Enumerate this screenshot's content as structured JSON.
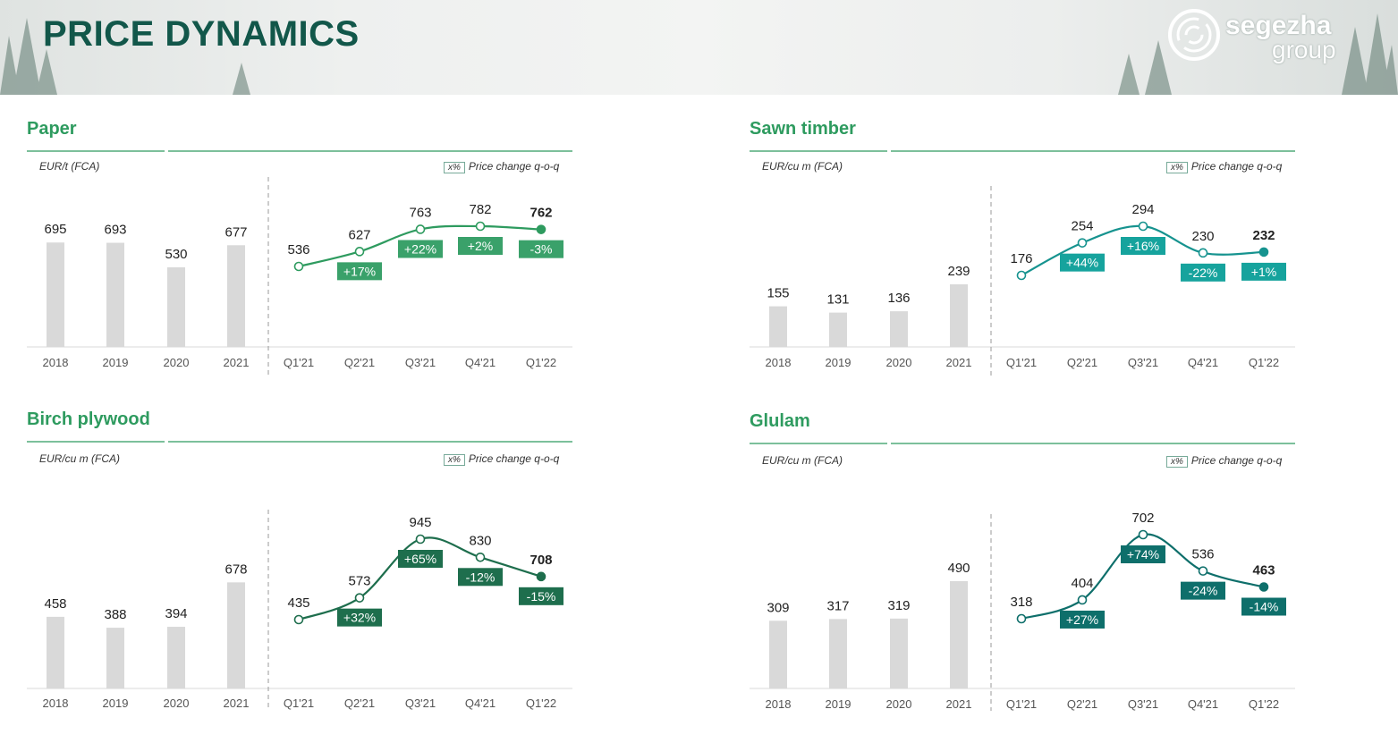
{
  "header": {
    "title": "PRICE DYNAMICS",
    "logo_word1": "segezha",
    "logo_word2": "group"
  },
  "legend_box": "x%",
  "legend_text": "Price change q-o-q",
  "colors": {
    "green": "#2e9b5f",
    "dark_green": "#1e6e4d",
    "teal": "#16938f",
    "dark_teal": "#0e6f6b",
    "bar": "#d9d9d9",
    "title": "#12574a"
  },
  "chart_data": [
    {
      "type": "bar+line",
      "title": "Paper",
      "unit": "EUR/t (FCA)",
      "bars": {
        "categories": [
          "2018",
          "2019",
          "2020",
          "2021"
        ],
        "values": [
          695,
          693,
          530,
          677
        ]
      },
      "line": {
        "categories": [
          "Q1'21",
          "Q2'21",
          "Q3'21",
          "Q4'21",
          "Q1'22"
        ],
        "values": [
          536,
          627,
          763,
          782,
          762
        ]
      },
      "changes": [
        "+17%",
        "+22%",
        "+2%",
        "-3%"
      ],
      "color": "green"
    },
    {
      "type": "bar+line",
      "title": "Sawn timber",
      "unit": "EUR/cu m (FCA)",
      "bars": {
        "categories": [
          "2018",
          "2019",
          "2020",
          "2021"
        ],
        "values": [
          155,
          131,
          136,
          239
        ]
      },
      "line": {
        "categories": [
          "Q1'21",
          "Q2'21",
          "Q3'21",
          "Q4'21",
          "Q1'22"
        ],
        "values": [
          176,
          254,
          294,
          230,
          232
        ]
      },
      "changes": [
        "+44%",
        "+16%",
        "-22%",
        "+1%"
      ],
      "color": "teal"
    },
    {
      "type": "bar+line",
      "title": "Birch plywood",
      "unit": "EUR/cu m (FCA)",
      "bars": {
        "categories": [
          "2018",
          "2019",
          "2020",
          "2021"
        ],
        "values": [
          458,
          388,
          394,
          678
        ]
      },
      "line": {
        "categories": [
          "Q1'21",
          "Q2'21",
          "Q3'21",
          "Q4'21",
          "Q1'22"
        ],
        "values": [
          435,
          573,
          945,
          830,
          708
        ]
      },
      "changes": [
        "+32%",
        "+65%",
        "-12%",
        "-15%"
      ],
      "color": "dark_green"
    },
    {
      "type": "bar+line",
      "title": "Glulam",
      "unit": "EUR/cu m (FCA)",
      "bars": {
        "categories": [
          "2018",
          "2019",
          "2020",
          "2021"
        ],
        "values": [
          309,
          317,
          319,
          490
        ]
      },
      "line": {
        "categories": [
          "Q1'21",
          "Q2'21",
          "Q3'21",
          "Q4'21",
          "Q1'22"
        ],
        "values": [
          318,
          404,
          702,
          536,
          463
        ]
      },
      "changes": [
        "+27%",
        "+74%",
        "-24%",
        "-14%"
      ],
      "color": "dark_teal"
    }
  ]
}
